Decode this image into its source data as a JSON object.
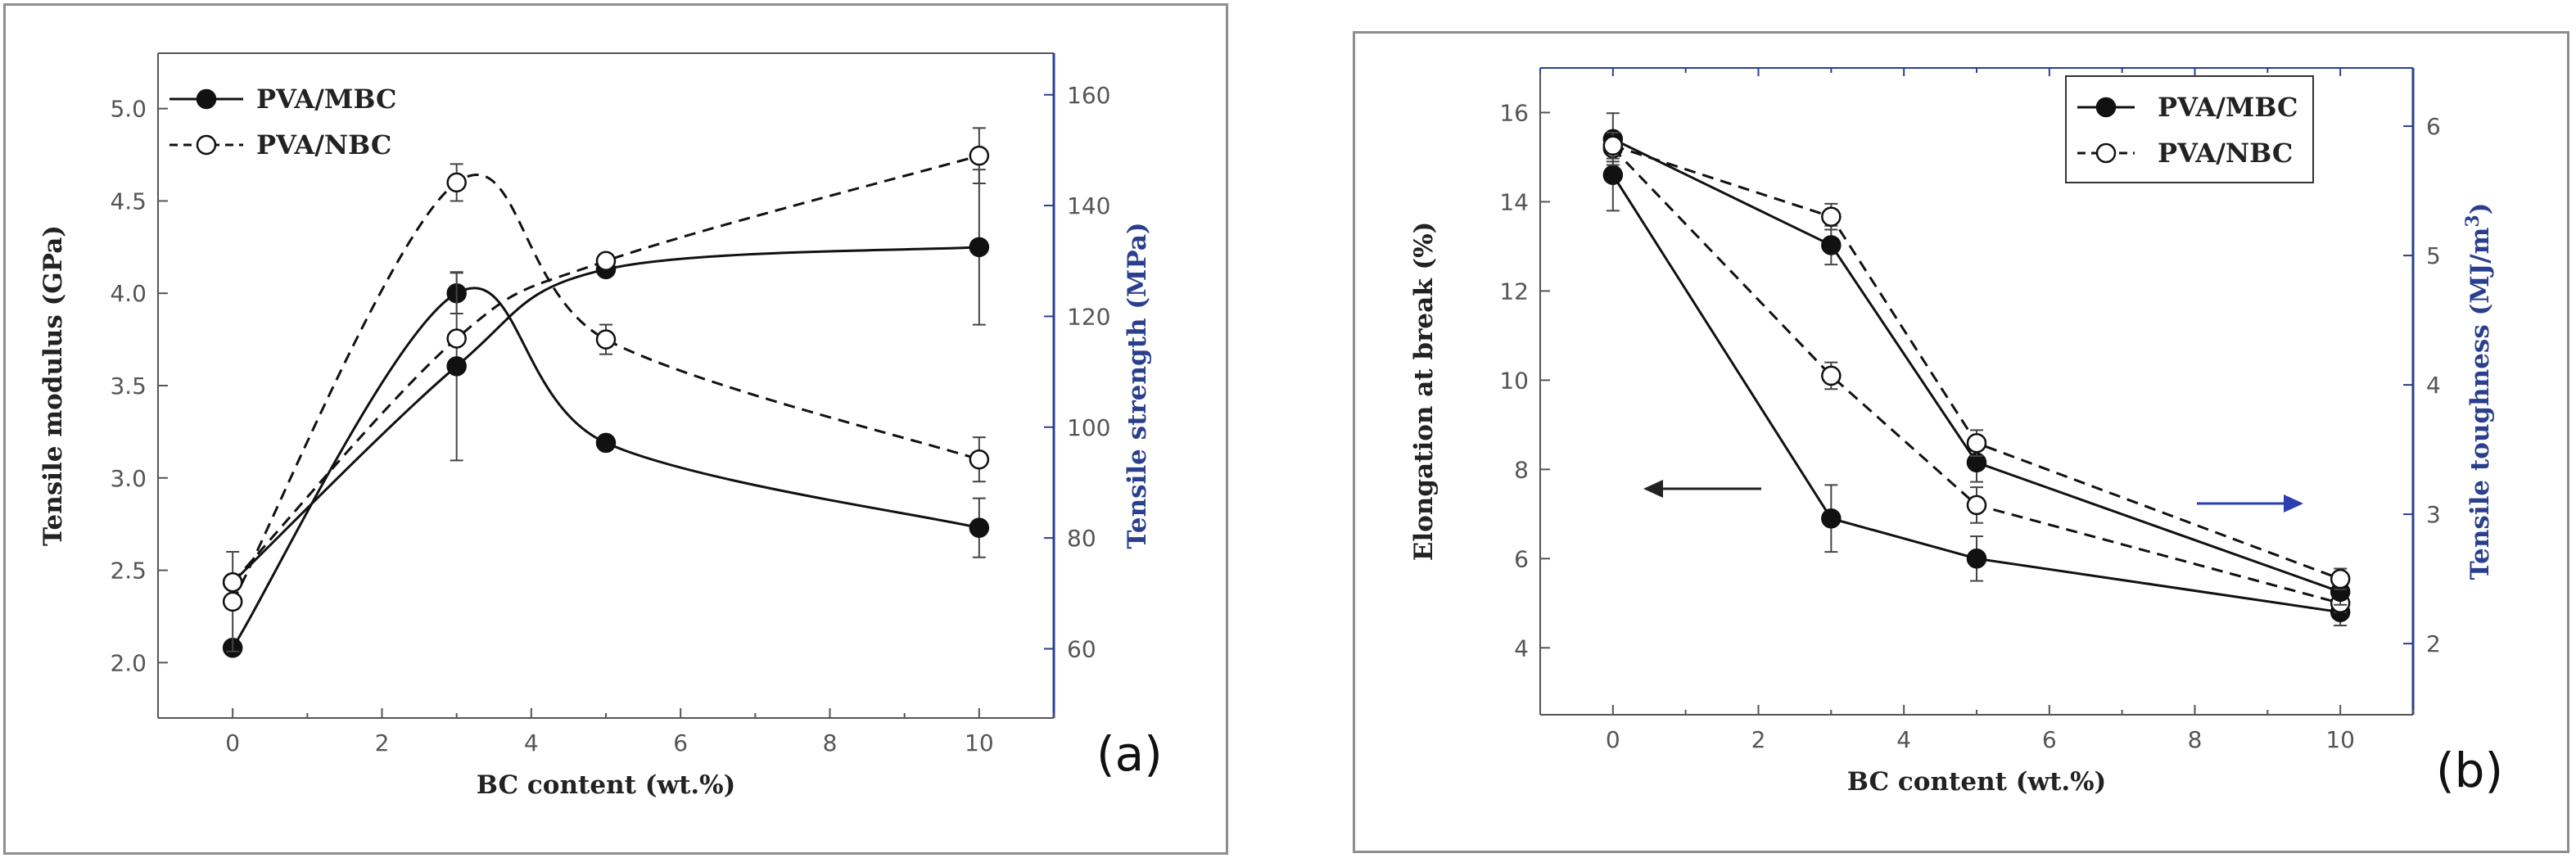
{
  "chart_data": [
    {
      "id": "a",
      "type": "line",
      "panel_label": "(a)",
      "xlabel": "BC content (wt.%)",
      "ylabel": "Tensile modulus (GPa)",
      "ylabel_right": "Tensile strength (MPa)",
      "xlim": [
        -1,
        11
      ],
      "ylim": [
        1.7,
        5.3
      ],
      "ylim_right": [
        47.5,
        167.5
      ],
      "xticks": [
        0,
        2,
        4,
        6,
        8,
        10
      ],
      "yticks": [
        2.0,
        2.5,
        3.0,
        3.5,
        4.0,
        4.5,
        5.0
      ],
      "yticks_right": [
        60,
        80,
        100,
        120,
        140,
        160
      ],
      "legend": {
        "position": "top-left",
        "entries": [
          "PVA/MBC",
          "PVA/NBC"
        ]
      },
      "series": [
        {
          "name": "PVA/MBC",
          "quantity": "modulus",
          "axis": "left",
          "marker": "filled",
          "line": "solid",
          "x": [
            0,
            3,
            5,
            10
          ],
          "y": [
            2.08,
            4.0,
            3.19,
            2.73
          ],
          "err": [
            0.0,
            0.11,
            0.03,
            0.16
          ]
        },
        {
          "name": "PVA/NBC",
          "quantity": "modulus",
          "axis": "left",
          "marker": "open",
          "line": "dashed",
          "x": [
            0,
            3,
            5,
            10
          ],
          "y": [
            2.33,
            4.6,
            3.75,
            3.1
          ],
          "err": [
            0.27,
            0.1,
            0.08,
            0.12
          ]
        },
        {
          "name": "PVA/MBC",
          "quantity": "strength",
          "axis": "right",
          "marker": "filled",
          "line": "solid",
          "x": [
            0,
            3,
            5,
            10
          ],
          "y": [
            72,
            111,
            128.5,
            132.5
          ],
          "err": [
            0,
            17,
            0,
            14
          ]
        },
        {
          "name": "PVA/NBC",
          "quantity": "strength",
          "axis": "right",
          "marker": "open",
          "line": "dashed",
          "x": [
            0,
            3,
            5,
            10
          ],
          "y": [
            72,
            116,
            130,
            149
          ],
          "err": [
            0,
            0,
            0,
            5
          ]
        }
      ]
    },
    {
      "id": "b",
      "type": "line",
      "panel_label": "(b)",
      "xlabel": "BC content (wt.%)",
      "ylabel": "Elongation at break (%)",
      "ylabel_right_main": "Tensile toughness (MJ/m",
      "ylabel_right_sup": "3",
      "ylabel_right_close": ")",
      "xlim": [
        -1,
        11
      ],
      "ylim": [
        2.5,
        17
      ],
      "ylim_right": [
        1.45,
        6.45
      ],
      "xticks": [
        0,
        2,
        4,
        6,
        8,
        10
      ],
      "yticks": [
        4,
        6,
        8,
        10,
        12,
        14,
        16
      ],
      "yticks_right": [
        2,
        3,
        4,
        5,
        6
      ],
      "legend": {
        "position": "top-right",
        "entries": [
          "PVA/MBC",
          "PVA/NBC"
        ]
      },
      "series": [
        {
          "name": "PVA/MBC",
          "quantity": "elongation",
          "axis": "left",
          "marker": "filled",
          "line": "solid",
          "x": [
            0,
            3,
            5,
            10
          ],
          "y": [
            14.6,
            6.9,
            6.0,
            4.8
          ],
          "err": [
            0.8,
            0.75,
            0.5,
            0.3
          ]
        },
        {
          "name": "PVA/NBC",
          "quantity": "elongation",
          "axis": "left",
          "marker": "open",
          "line": "dashed",
          "x": [
            0,
            3,
            5,
            10
          ],
          "y": [
            15.2,
            10.1,
            7.2,
            5.0
          ],
          "err": [
            0.3,
            0.3,
            0.4,
            0.2
          ]
        },
        {
          "name": "PVA/MBC",
          "quantity": "toughness",
          "axis": "right",
          "marker": "filled",
          "line": "solid",
          "x": [
            0,
            3,
            5,
            10
          ],
          "y": [
            5.9,
            5.08,
            3.4,
            2.4
          ],
          "err": [
            0.2,
            0.15,
            0.15,
            0.1
          ]
        },
        {
          "name": "PVA/NBC",
          "quantity": "toughness",
          "axis": "right",
          "marker": "open",
          "line": "dashed",
          "x": [
            0,
            3,
            5,
            10
          ],
          "y": [
            5.85,
            5.3,
            3.55,
            2.5
          ],
          "err": [
            0.1,
            0.1,
            0.1,
            0.08
          ]
        }
      ]
    }
  ],
  "colors": {
    "axis_left": "#555555",
    "axis_right": "#2b3f8f",
    "series": "#111111",
    "arrow_left": "#222222",
    "arrow_right": "#2b3fb0"
  }
}
